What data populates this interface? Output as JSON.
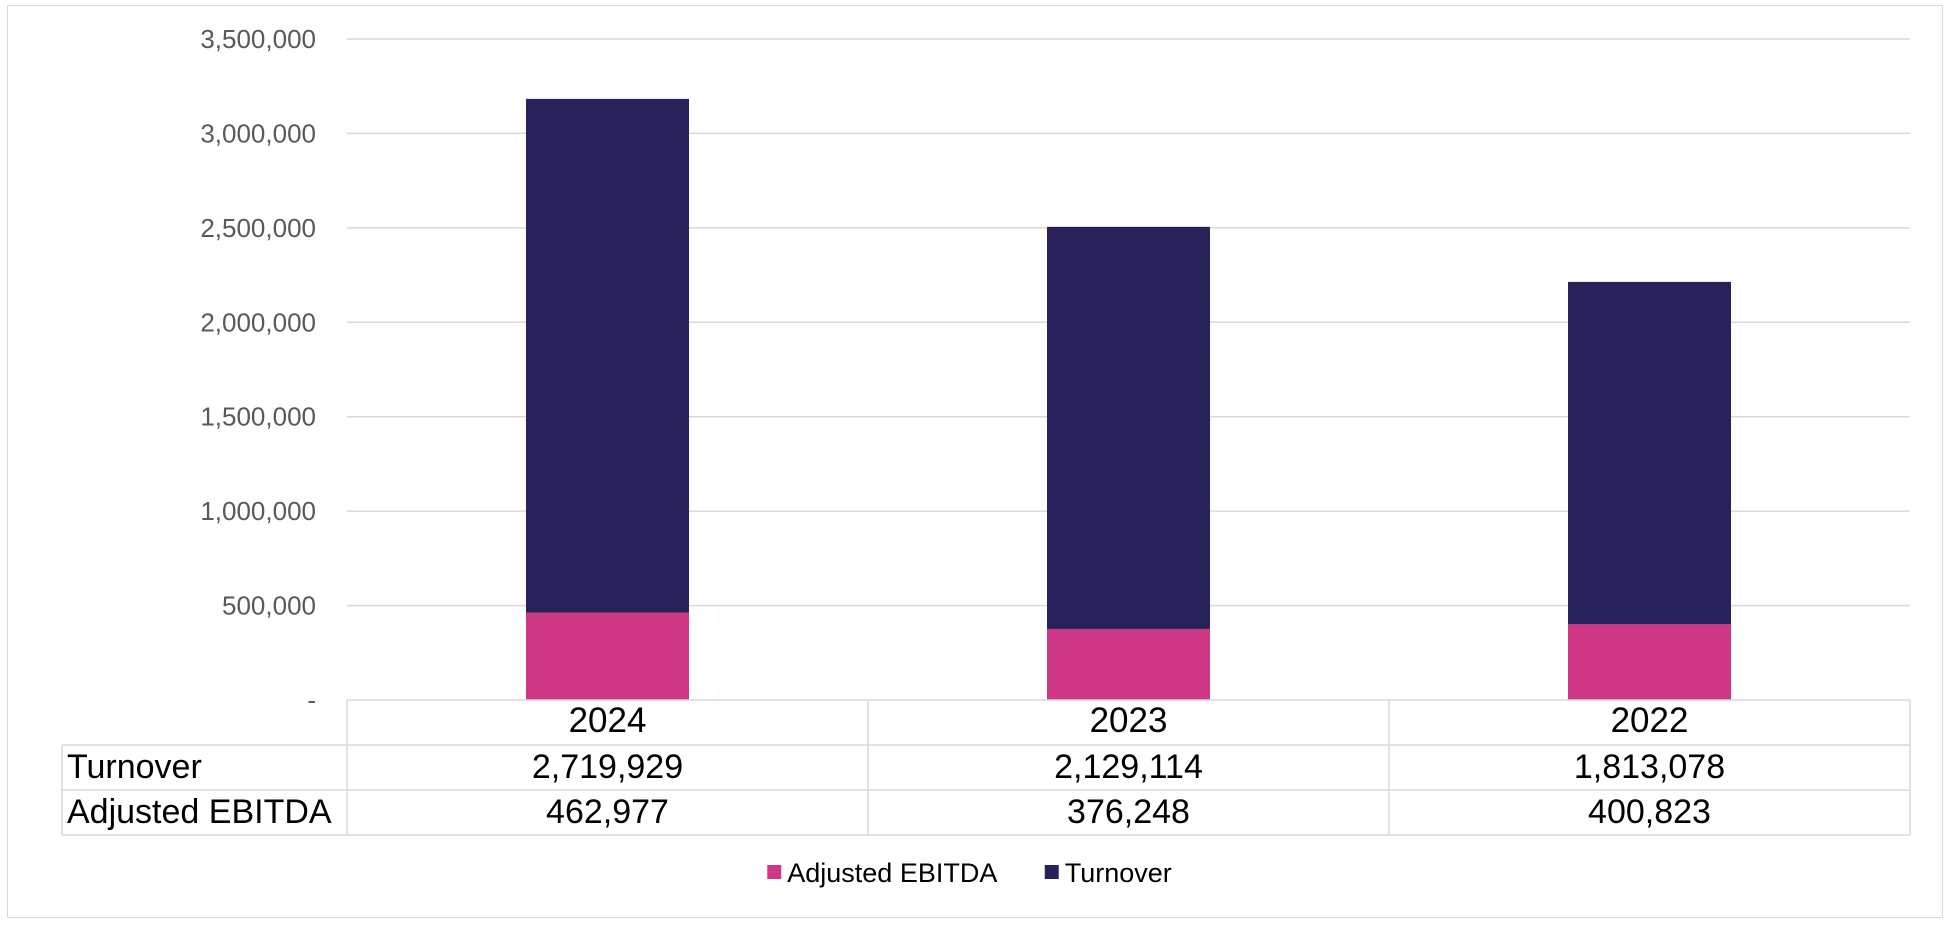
{
  "chart_data": {
    "type": "bar",
    "stacked": true,
    "categories": [
      "2024",
      "2023",
      "2022"
    ],
    "series": [
      {
        "name": "Adjusted EBITDA",
        "values": [
          462977,
          376248,
          400823
        ],
        "color": "#cf3884",
        "value_labels": [
          "462,977",
          "376,248",
          "400,823"
        ]
      },
      {
        "name": "Turnover",
        "values": [
          2719929,
          2129114,
          1813078
        ],
        "color": "#27225a",
        "value_labels": [
          "2,719,929",
          "2,129,114",
          "1,813,078"
        ]
      }
    ],
    "ylim": [
      0,
      3500000
    ],
    "yticks": [
      {
        "value": 0,
        "label": "-"
      },
      {
        "value": 500000,
        "label": "500,000"
      },
      {
        "value": 1000000,
        "label": "1,000,000"
      },
      {
        "value": 1500000,
        "label": "1,500,000"
      },
      {
        "value": 2000000,
        "label": "2,000,000"
      },
      {
        "value": 2500000,
        "label": "2,500,000"
      },
      {
        "value": 3000000,
        "label": "3,000,000"
      },
      {
        "value": 3500000,
        "label": "3,500,000"
      }
    ],
    "grid": true,
    "data_table": {
      "rows": [
        {
          "label": "Turnover",
          "series": 1
        },
        {
          "label": "Adjusted EBITDA",
          "series": 0
        }
      ]
    },
    "legend": {
      "position": "bottom",
      "order": [
        0,
        1
      ]
    },
    "title": "",
    "xlabel": "",
    "ylabel": ""
  }
}
